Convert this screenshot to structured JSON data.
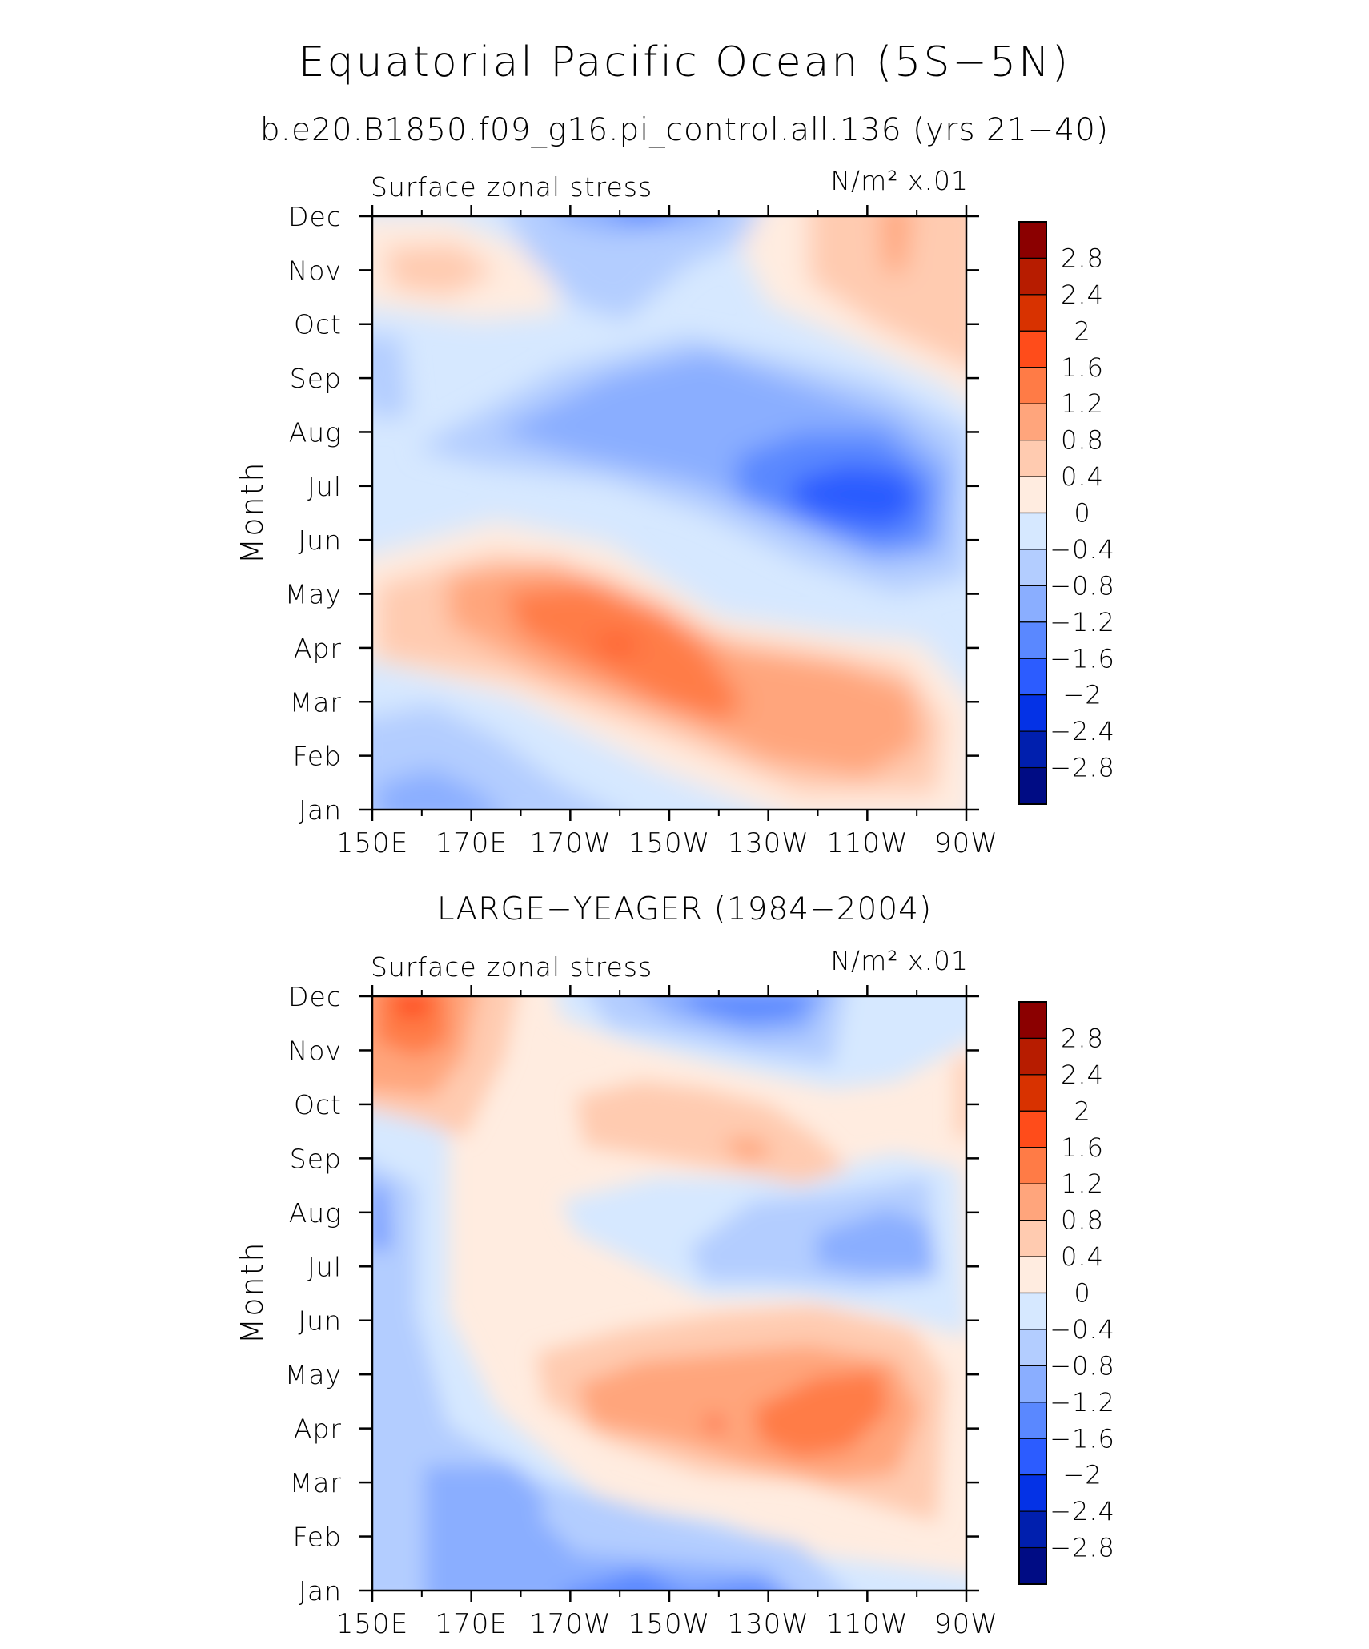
{
  "title": "Equatorial Pacific Ocean (5S−5N)",
  "panels": [
    {
      "name": "b.e20.B1850.f09_g16.pi_control.all.136 (yrs 21−40)",
      "left_label": "Surface zonal stress",
      "right_label": "N/m² x.01",
      "ylabel": "Month"
    },
    {
      "name": "LARGE−YEAGER (1984−2004)",
      "left_label": "Surface zonal stress",
      "right_label": "N/m² x.01",
      "ylabel": "Month"
    }
  ],
  "chart_data": {
    "type": "heatmap",
    "x_ticks": [
      "150E",
      "170E",
      "170W",
      "150W",
      "130W",
      "110W",
      "90W"
    ],
    "y_ticks": [
      "Jan",
      "Feb",
      "Mar",
      "Apr",
      "May",
      "Jun",
      "Jul",
      "Aug",
      "Sep",
      "Oct",
      "Nov",
      "Dec"
    ],
    "xlim": [
      "150E",
      "90W"
    ],
    "ylim": [
      "Jan",
      "Dec"
    ],
    "colorbar": {
      "levels": [
        "2.8",
        "2.4",
        "2",
        "1.6",
        "1.2",
        "0.8",
        "0.4",
        "0",
        "−0.4",
        "−0.8",
        "−1.2",
        "−1.6",
        "−2",
        "−2.4",
        "−2.8"
      ],
      "colors": [
        "#8b0000",
        "#b71c00",
        "#d83200",
        "#ff4c1a",
        "#ff7b46",
        "#ffa57c",
        "#ffcbb0",
        "#ffece0",
        "#d6e8ff",
        "#b3cdff",
        "#8aaeff",
        "#5a88ff",
        "#2c5cff",
        "#0432e6",
        "#001fae",
        "#000c84"
      ]
    }
  }
}
